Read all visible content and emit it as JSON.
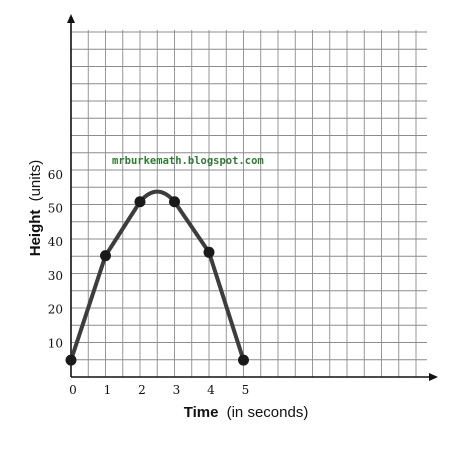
{
  "chart_data": {
    "type": "line",
    "xlabel_bold": "Time",
    "xlabel_rest": "(in seconds)",
    "ylabel_bold": "Height",
    "ylabel_rest": "(units)",
    "x_ticks": [
      "0",
      "1",
      "2",
      "3",
      "4",
      "5"
    ],
    "y_ticks": [
      "10",
      "20",
      "30",
      "40",
      "50",
      "60"
    ],
    "xlim": [
      0,
      10.5
    ],
    "ylim": [
      0,
      100
    ],
    "grid": true,
    "series": [
      {
        "points": [
          {
            "x": 0,
            "y": 5
          },
          {
            "x": 1,
            "y": 36
          },
          {
            "x": 2,
            "y": 52
          },
          {
            "x": 3,
            "y": 52
          },
          {
            "x": 4,
            "y": 37
          },
          {
            "x": 5,
            "y": 5
          }
        ],
        "apex": {
          "x": 2.5,
          "y": 55
        },
        "color": "#3d3d3d",
        "marker_color": "#1a1a1a"
      }
    ],
    "watermark": "mrburkemath.blogspot.com",
    "watermark_color": "#2f7a34"
  }
}
